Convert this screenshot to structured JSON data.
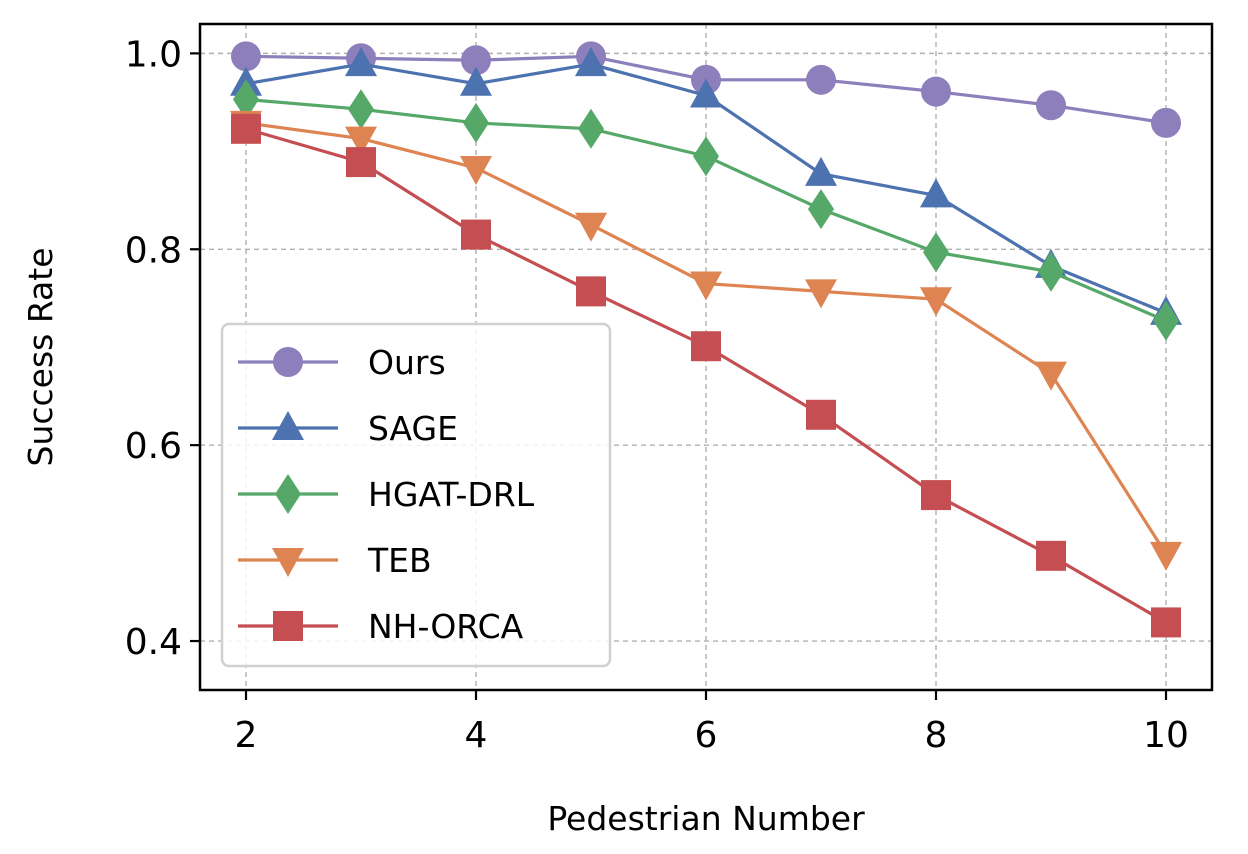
{
  "chart_data": {
    "type": "line",
    "title": "",
    "xlabel": "Pedestrian Number",
    "ylabel": "Success Rate",
    "x": [
      2,
      3,
      4,
      5,
      6,
      7,
      8,
      9,
      10
    ],
    "xlim": [
      1.6,
      10.4
    ],
    "ylim": [
      0.35,
      1.03
    ],
    "xticks": [
      2,
      4,
      6,
      8,
      10
    ],
    "xtick_labels": [
      "2",
      "4",
      "6",
      "8",
      "10"
    ],
    "yticks": [
      0.4,
      0.6,
      0.8,
      1.0
    ],
    "ytick_labels": [
      "0.4",
      "0.6",
      "0.8",
      "1.0"
    ],
    "grid": true,
    "legend_position": "lower-left",
    "series": [
      {
        "name": "Ours",
        "marker": "circle",
        "color": "#8c7fbb",
        "values": [
          0.997,
          0.995,
          0.993,
          0.997,
          0.973,
          0.973,
          0.961,
          0.947,
          0.929
        ]
      },
      {
        "name": "SAGE",
        "marker": "triangle-up",
        "color": "#4c72b0",
        "values": [
          0.969,
          0.989,
          0.969,
          0.989,
          0.957,
          0.877,
          0.855,
          0.783,
          0.735
        ]
      },
      {
        "name": "HGAT-DRL",
        "marker": "diamond",
        "color": "#55a868",
        "values": [
          0.953,
          0.943,
          0.929,
          0.923,
          0.895,
          0.841,
          0.797,
          0.777,
          0.727
        ]
      },
      {
        "name": "TEB",
        "marker": "triangle-down",
        "color": "#dd8452",
        "values": [
          0.929,
          0.913,
          0.883,
          0.825,
          0.765,
          0.757,
          0.749,
          0.673,
          0.489
        ]
      },
      {
        "name": "NH-ORCA",
        "marker": "square",
        "color": "#c44e52",
        "values": [
          0.923,
          0.889,
          0.815,
          0.757,
          0.701,
          0.631,
          0.549,
          0.487,
          0.419
        ]
      }
    ]
  }
}
